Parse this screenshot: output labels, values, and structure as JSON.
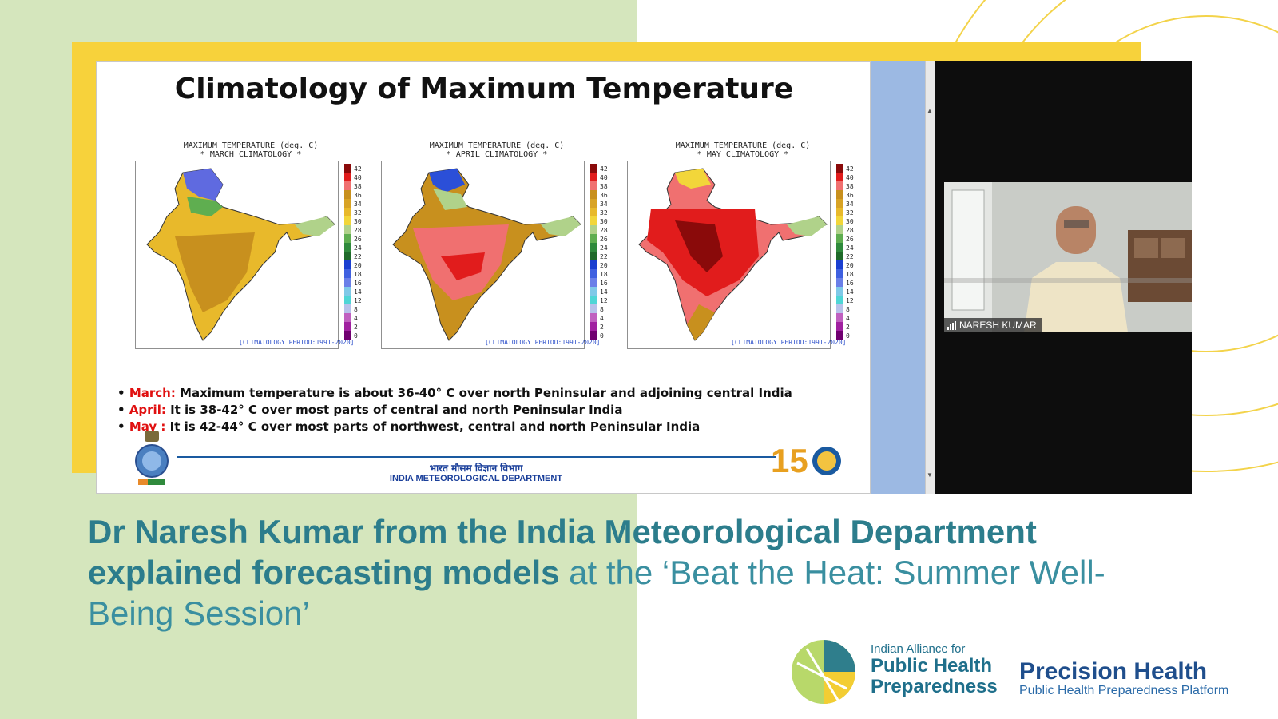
{
  "slide": {
    "title": "Climatology of Maximum Temperature",
    "maps": [
      {
        "heading": "MAXIMUM TEMPERATURE (deg. C)",
        "subheading": "* MARCH CLIMATOLOGY *",
        "period": "[CLIMATOLOGY PERIOD:1991-2020]"
      },
      {
        "heading": "MAXIMUM TEMPERATURE (deg. C)",
        "subheading": "* APRIL CLIMATOLOGY *",
        "period": "[CLIMATOLOGY PERIOD:1991-2020]"
      },
      {
        "heading": "MAXIMUM TEMPERATURE (deg. C)",
        "subheading": "* MAY CLIMATOLOGY *",
        "period": "[CLIMATOLOGY PERIOD:1991-2020]"
      }
    ],
    "scale_labels": [
      "42",
      "40",
      "38",
      "36",
      "34",
      "32",
      "30",
      "28",
      "26",
      "24",
      "22",
      "20",
      "18",
      "16",
      "14",
      "12",
      "8",
      "4",
      "2",
      "0"
    ],
    "scale_colors": [
      "#8a0a0a",
      "#e11c1c",
      "#f07070",
      "#c8901e",
      "#d8a325",
      "#e8b92b",
      "#f2d63a",
      "#b0d28a",
      "#5fae50",
      "#2f8a3c",
      "#1f6a2a",
      "#1a3fd0",
      "#3f60e0",
      "#6a7fe8",
      "#7fc9e8",
      "#4fd6d6",
      "#b7c1ea",
      "#c060c0",
      "#a020a0",
      "#700070"
    ],
    "bullets": [
      {
        "month": "March:",
        "text": " Maximum temperature is about 36-40° C over north Peninsular and adjoining central India"
      },
      {
        "month": "April:",
        "text": " It is 38-42° C over most parts of central and north Peninsular India"
      },
      {
        "month": "May :",
        "text": " It is 42-44° C over most parts of northwest, central and north Peninsular India"
      }
    ],
    "footer_hindi": "भारत मौसम विज्ञान विभाग",
    "footer_english": "INDIA METEOROLOGICAL DEPARTMENT"
  },
  "video": {
    "participant_name": "NARESH KUMAR"
  },
  "caption": {
    "bold_part": "Dr Naresh Kumar from the India Meteorological Department explained forecasting models",
    "light_part": " at the ‘Beat the Heat: Summer Well-Being Session’"
  },
  "logos": {
    "alliance_small": "Indian Alliance for",
    "alliance_line1": "Public Health",
    "alliance_line2": "Preparedness",
    "ph_title": "Precision Health",
    "ph_subtitle": "Public Health Preparedness Platform"
  },
  "colors": {
    "bg_green": "#d5e6bd",
    "frame_yellow": "#f7d23b",
    "caption_teal": "#2c7d8c",
    "pane_blue": "#9cb9e3"
  }
}
